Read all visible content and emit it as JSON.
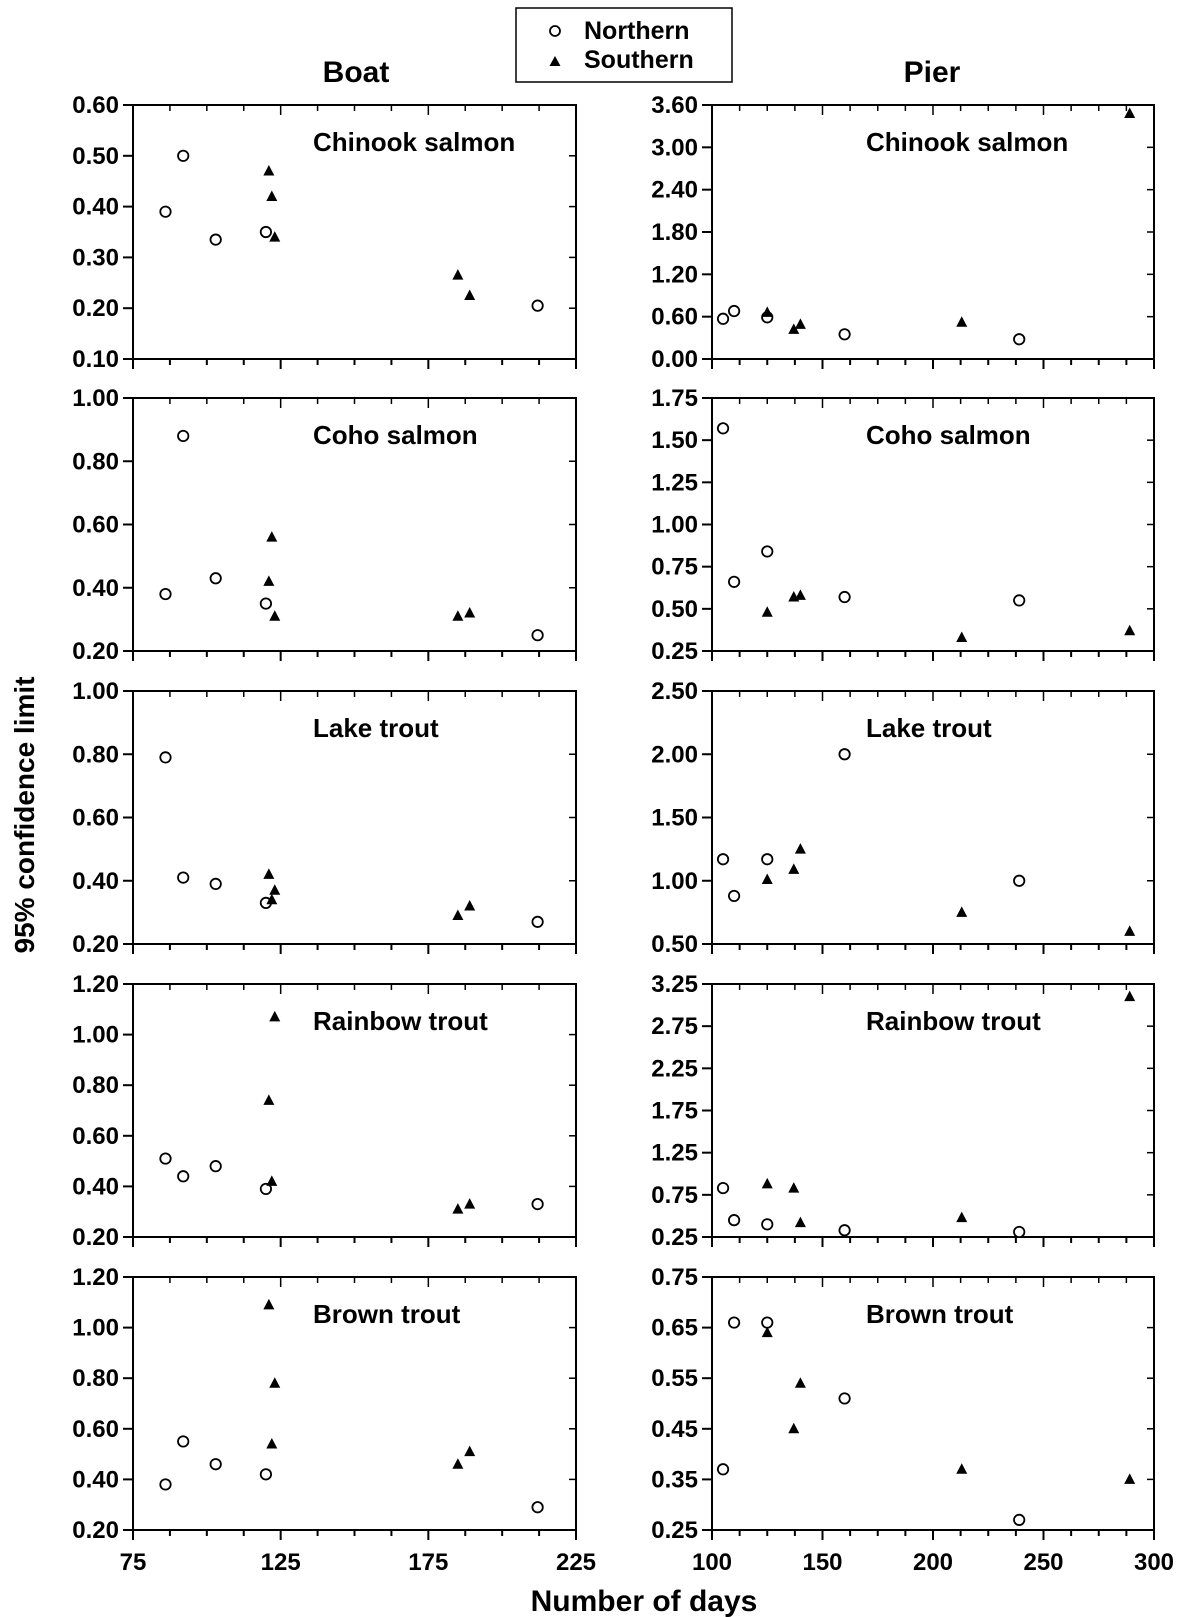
{
  "figure": {
    "column_titles": [
      "Boat",
      "Pier"
    ],
    "ylabel": "95% confidence limit",
    "xlabel": "Number of days",
    "legend": {
      "position": "top-center",
      "entries": [
        {
          "label": "Northern",
          "marker": "open-circle"
        },
        {
          "label": "Southern",
          "marker": "filled-triangle"
        }
      ]
    }
  },
  "chart_data": [
    {
      "type": "scatter",
      "column": "Boat",
      "row": 0,
      "title": "Chinook salmon",
      "xlim": [
        75,
        225
      ],
      "xticks": [
        75,
        125,
        175,
        225
      ],
      "x_minor_step": 12.5,
      "ylim": [
        0.1,
        0.6
      ],
      "yticks": [
        "0.10",
        "0.20",
        "0.30",
        "0.40",
        "0.50",
        "0.60"
      ],
      "series": [
        {
          "name": "Northern",
          "points": [
            [
              86,
              0.39
            ],
            [
              92,
              0.5
            ],
            [
              103,
              0.335
            ],
            [
              120,
              0.35
            ],
            [
              212,
              0.205
            ]
          ]
        },
        {
          "name": "Southern",
          "points": [
            [
              121,
              0.47
            ],
            [
              122,
              0.42
            ],
            [
              123,
              0.34
            ],
            [
              185,
              0.265
            ],
            [
              189,
              0.225
            ]
          ]
        }
      ]
    },
    {
      "type": "scatter",
      "column": "Boat",
      "row": 1,
      "title": "Coho salmon",
      "xlim": [
        75,
        225
      ],
      "xticks": [
        75,
        125,
        175,
        225
      ],
      "x_minor_step": 12.5,
      "ylim": [
        0.2,
        1.0
      ],
      "yticks": [
        "0.20",
        "0.40",
        "0.60",
        "0.80",
        "1.00"
      ],
      "series": [
        {
          "name": "Northern",
          "points": [
            [
              86,
              0.38
            ],
            [
              92,
              0.88
            ],
            [
              103,
              0.43
            ],
            [
              120,
              0.35
            ],
            [
              212,
              0.25
            ]
          ]
        },
        {
          "name": "Southern",
          "points": [
            [
              121,
              0.42
            ],
            [
              122,
              0.56
            ],
            [
              123,
              0.31
            ],
            [
              185,
              0.31
            ],
            [
              189,
              0.32
            ]
          ]
        }
      ]
    },
    {
      "type": "scatter",
      "column": "Boat",
      "row": 2,
      "title": "Lake trout",
      "xlim": [
        75,
        225
      ],
      "xticks": [
        75,
        125,
        175,
        225
      ],
      "x_minor_step": 12.5,
      "ylim": [
        0.2,
        1.0
      ],
      "yticks": [
        "0.20",
        "0.40",
        "0.60",
        "0.80",
        "1.00"
      ],
      "series": [
        {
          "name": "Northern",
          "points": [
            [
              86,
              0.79
            ],
            [
              92,
              0.41
            ],
            [
              103,
              0.39
            ],
            [
              120,
              0.33
            ],
            [
              212,
              0.27
            ]
          ]
        },
        {
          "name": "Southern",
          "points": [
            [
              121,
              0.42
            ],
            [
              122,
              0.34
            ],
            [
              123,
              0.37
            ],
            [
              185,
              0.29
            ],
            [
              189,
              0.32
            ]
          ]
        }
      ]
    },
    {
      "type": "scatter",
      "column": "Boat",
      "row": 3,
      "title": "Rainbow trout",
      "xlim": [
        75,
        225
      ],
      "xticks": [
        75,
        125,
        175,
        225
      ],
      "x_minor_step": 12.5,
      "ylim": [
        0.2,
        1.2
      ],
      "yticks": [
        "0.20",
        "0.40",
        "0.60",
        "0.80",
        "1.00",
        "1.20"
      ],
      "series": [
        {
          "name": "Northern",
          "points": [
            [
              86,
              0.51
            ],
            [
              92,
              0.44
            ],
            [
              103,
              0.48
            ],
            [
              120,
              0.39
            ],
            [
              212,
              0.33
            ]
          ]
        },
        {
          "name": "Southern",
          "points": [
            [
              121,
              0.74
            ],
            [
              122,
              0.42
            ],
            [
              123,
              1.07
            ],
            [
              185,
              0.31
            ],
            [
              189,
              0.33
            ]
          ]
        }
      ]
    },
    {
      "type": "scatter",
      "column": "Boat",
      "row": 4,
      "title": "Brown trout",
      "xlim": [
        75,
        225
      ],
      "xticks": [
        75,
        125,
        175,
        225
      ],
      "x_minor_step": 12.5,
      "ylim": [
        0.2,
        1.2
      ],
      "yticks": [
        "0.20",
        "0.40",
        "0.60",
        "0.80",
        "1.00",
        "1.20"
      ],
      "series": [
        {
          "name": "Northern",
          "points": [
            [
              86,
              0.38
            ],
            [
              92,
              0.55
            ],
            [
              103,
              0.46
            ],
            [
              120,
              0.42
            ],
            [
              212,
              0.29
            ]
          ]
        },
        {
          "name": "Southern",
          "points": [
            [
              121,
              1.09
            ],
            [
              122,
              0.54
            ],
            [
              123,
              0.78
            ],
            [
              185,
              0.46
            ],
            [
              189,
              0.51
            ]
          ]
        }
      ]
    },
    {
      "type": "scatter",
      "column": "Pier",
      "row": 0,
      "title": "Chinook salmon",
      "xlim": [
        100,
        300
      ],
      "xticks": [
        100,
        150,
        200,
        250,
        300
      ],
      "x_minor_step": 12.5,
      "ylim": [
        0.0,
        3.6
      ],
      "yticks": [
        "0.00",
        "0.60",
        "1.20",
        "1.80",
        "2.40",
        "3.00",
        "3.60"
      ],
      "series": [
        {
          "name": "Northern",
          "points": [
            [
              105,
              0.57
            ],
            [
              110,
              0.68
            ],
            [
              125,
              0.59
            ],
            [
              160,
              0.35
            ],
            [
              239,
              0.28
            ]
          ]
        },
        {
          "name": "Southern",
          "points": [
            [
              125,
              0.66
            ],
            [
              137,
              0.42
            ],
            [
              140,
              0.49
            ],
            [
              213,
              0.52
            ],
            [
              289,
              3.48
            ]
          ]
        }
      ]
    },
    {
      "type": "scatter",
      "column": "Pier",
      "row": 1,
      "title": "Coho salmon",
      "xlim": [
        100,
        300
      ],
      "xticks": [
        100,
        150,
        200,
        250,
        300
      ],
      "x_minor_step": 12.5,
      "ylim": [
        0.25,
        1.75
      ],
      "yticks": [
        "0.25",
        "0.50",
        "0.75",
        "1.00",
        "1.25",
        "1.50",
        "1.75"
      ],
      "series": [
        {
          "name": "Northern",
          "points": [
            [
              105,
              1.57
            ],
            [
              110,
              0.66
            ],
            [
              125,
              0.84
            ],
            [
              160,
              0.57
            ],
            [
              239,
              0.55
            ]
          ]
        },
        {
          "name": "Southern",
          "points": [
            [
              125,
              0.48
            ],
            [
              137,
              0.57
            ],
            [
              140,
              0.58
            ],
            [
              213,
              0.33
            ],
            [
              289,
              0.37
            ]
          ]
        }
      ]
    },
    {
      "type": "scatter",
      "column": "Pier",
      "row": 2,
      "title": "Lake trout",
      "xlim": [
        100,
        300
      ],
      "xticks": [
        100,
        150,
        200,
        250,
        300
      ],
      "x_minor_step": 12.5,
      "ylim": [
        0.5,
        2.5
      ],
      "yticks": [
        "0.50",
        "1.00",
        "1.50",
        "2.00",
        "2.50"
      ],
      "series": [
        {
          "name": "Northern",
          "points": [
            [
              105,
              1.17
            ],
            [
              110,
              0.88
            ],
            [
              125,
              1.17
            ],
            [
              160,
              2.0
            ],
            [
              239,
              1.0
            ]
          ]
        },
        {
          "name": "Southern",
          "points": [
            [
              125,
              1.01
            ],
            [
              137,
              1.09
            ],
            [
              140,
              1.25
            ],
            [
              213,
              0.75
            ],
            [
              289,
              0.6
            ]
          ]
        }
      ]
    },
    {
      "type": "scatter",
      "column": "Pier",
      "row": 3,
      "title": "Rainbow trout",
      "xlim": [
        100,
        300
      ],
      "xticks": [
        100,
        150,
        200,
        250,
        300
      ],
      "x_minor_step": 12.5,
      "ylim": [
        0.25,
        3.25
      ],
      "yticks": [
        "0.25",
        "0.75",
        "1.25",
        "1.75",
        "2.25",
        "2.75",
        "3.25"
      ],
      "series": [
        {
          "name": "Northern",
          "points": [
            [
              105,
              0.83
            ],
            [
              110,
              0.45
            ],
            [
              125,
              0.4
            ],
            [
              160,
              0.33
            ],
            [
              239,
              0.31
            ]
          ]
        },
        {
          "name": "Southern",
          "points": [
            [
              125,
              0.88
            ],
            [
              137,
              0.83
            ],
            [
              140,
              0.42
            ],
            [
              213,
              0.48
            ],
            [
              289,
              3.1
            ]
          ]
        }
      ]
    },
    {
      "type": "scatter",
      "column": "Pier",
      "row": 4,
      "title": "Brown trout",
      "xlim": [
        100,
        300
      ],
      "xticks": [
        100,
        150,
        200,
        250,
        300
      ],
      "x_minor_step": 12.5,
      "ylim": [
        0.25,
        0.75
      ],
      "yticks": [
        "0.25",
        "0.35",
        "0.45",
        "0.55",
        "0.65",
        "0.75"
      ],
      "series": [
        {
          "name": "Northern",
          "points": [
            [
              105,
              0.37
            ],
            [
              110,
              0.66
            ],
            [
              125,
              0.66
            ],
            [
              160,
              0.51
            ],
            [
              239,
              0.27
            ]
          ]
        },
        {
          "name": "Southern",
          "points": [
            [
              125,
              0.64
            ],
            [
              137,
              0.45
            ],
            [
              140,
              0.54
            ],
            [
              213,
              0.37
            ],
            [
              289,
              0.35
            ]
          ]
        }
      ]
    }
  ]
}
